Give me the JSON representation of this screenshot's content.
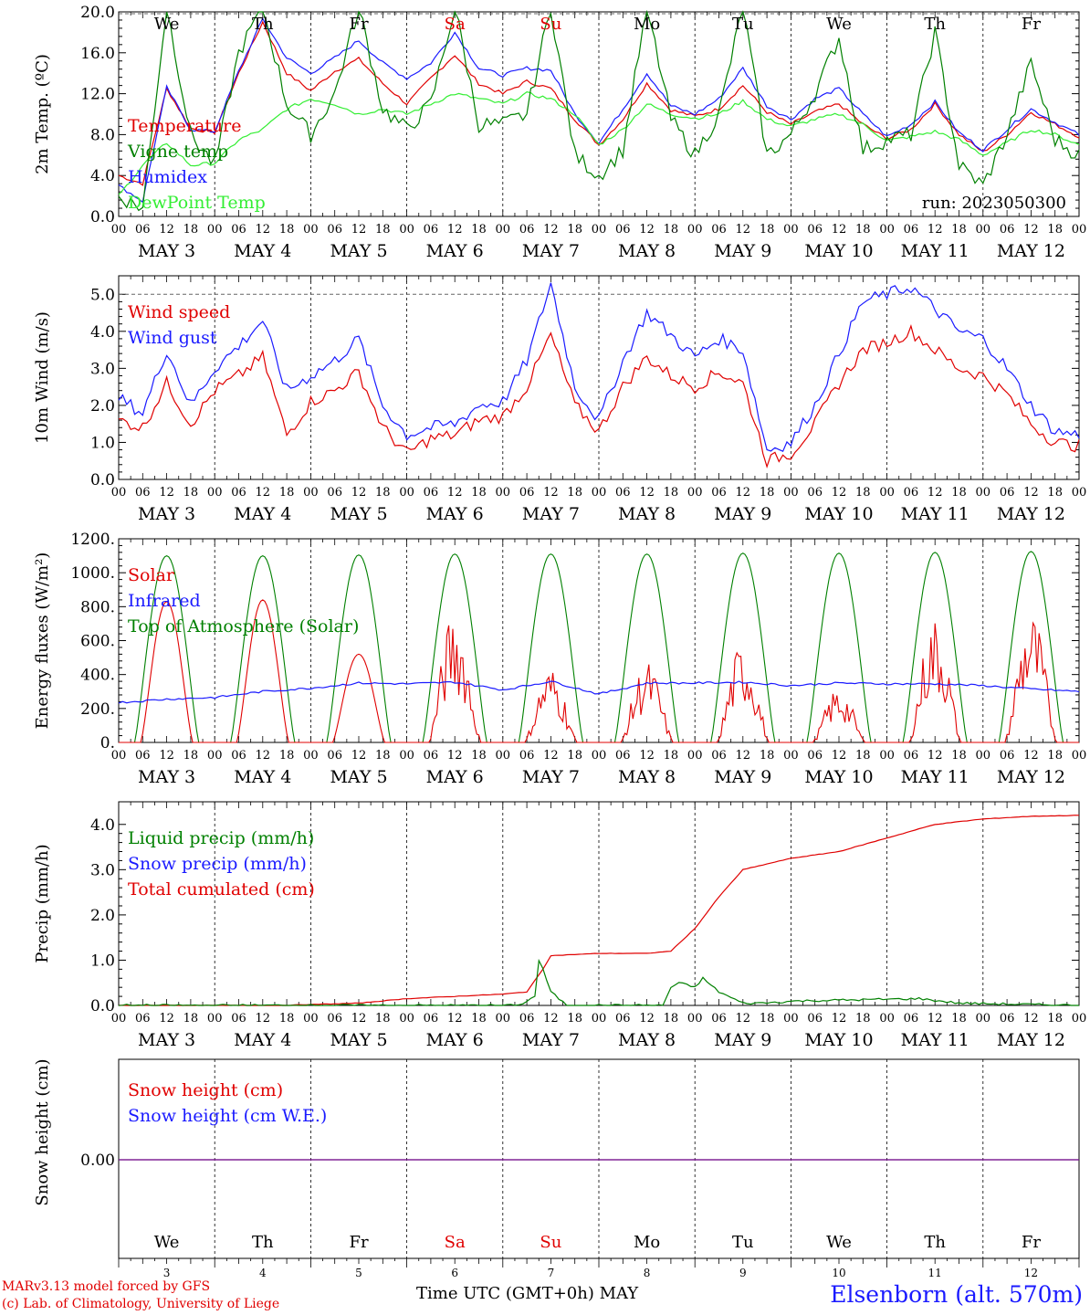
{
  "chart_data": [
    {
      "type": "line",
      "ylabel": "2m Temp. (ºC)",
      "ylim": [
        0,
        20
      ],
      "yticks": [
        "0.0",
        "4.0",
        "8.0",
        "12.0",
        "16.0",
        "20.0"
      ],
      "run_label": "run: 2023050300",
      "legend": [
        "Temperature",
        "Vigne temp",
        "Humidex",
        "DewPoint Temp"
      ],
      "series": [
        {
          "name": "Temperature",
          "color": "#e00000",
          "x": [
            0,
            6,
            12,
            18,
            24,
            30,
            36,
            42,
            48,
            54,
            60,
            66,
            72,
            78,
            84,
            90,
            96,
            102,
            108,
            114,
            120,
            126,
            132,
            138,
            144,
            150,
            156,
            162,
            168,
            174,
            180,
            186,
            192,
            198,
            204,
            210,
            216,
            222,
            228,
            234,
            240
          ],
          "values": [
            4.0,
            3.2,
            12.5,
            8.6,
            8.2,
            14.0,
            19.0,
            14.0,
            12.3,
            14.2,
            15.4,
            13.0,
            11.0,
            13.5,
            15.8,
            13.0,
            12.0,
            13.2,
            12.5,
            9.5,
            7.0,
            9.5,
            13.0,
            10.4,
            9.8,
            10.5,
            12.8,
            10.2,
            9.0,
            10.2,
            11.0,
            9.0,
            7.6,
            8.5,
            11.0,
            8.0,
            6.3,
            8.0,
            10.2,
            9.0,
            7.8
          ]
        },
        {
          "name": "Humidex",
          "color": "#1a1aff",
          "x": [
            0,
            6,
            12,
            18,
            24,
            30,
            36,
            42,
            48,
            54,
            60,
            66,
            72,
            78,
            84,
            90,
            96,
            102,
            108,
            114,
            120,
            126,
            132,
            138,
            144,
            150,
            156,
            162,
            168,
            174,
            180,
            186,
            192,
            198,
            204,
            210,
            216,
            222,
            228,
            234,
            240
          ],
          "values": [
            3.0,
            1.5,
            12.6,
            8.5,
            8.3,
            14.2,
            19.3,
            15.5,
            14.0,
            15.5,
            17.2,
            15.0,
            13.5,
            15.0,
            18.0,
            14.5,
            13.8,
            14.5,
            14.3,
            10.0,
            7.2,
            10.5,
            14.0,
            10.8,
            10.0,
            11.5,
            14.5,
            10.8,
            9.5,
            11.5,
            12.5,
            10.0,
            7.8,
            9.0,
            11.2,
            8.2,
            6.5,
            8.5,
            10.5,
            9.2,
            8.0
          ]
        },
        {
          "name": "DewPoint Temp",
          "color": "#33ee33",
          "x": [
            0,
            6,
            12,
            18,
            24,
            30,
            36,
            42,
            48,
            54,
            60,
            66,
            72,
            78,
            84,
            90,
            96,
            102,
            108,
            114,
            120,
            126,
            132,
            138,
            144,
            150,
            156,
            162,
            168,
            174,
            180,
            186,
            192,
            198,
            204,
            210,
            216,
            222,
            228,
            234,
            240
          ],
          "values": [
            2.0,
            5.0,
            7.2,
            5.0,
            5.2,
            7.5,
            8.5,
            10.5,
            11.5,
            11.0,
            10.0,
            10.5,
            10.0,
            11.0,
            12.0,
            11.5,
            11.0,
            12.0,
            11.5,
            10.0,
            7.0,
            8.5,
            11.0,
            10.0,
            9.6,
            10.0,
            11.3,
            9.5,
            8.8,
            9.5,
            10.0,
            9.0,
            7.4,
            7.8,
            8.3,
            7.5,
            6.0,
            7.2,
            8.5,
            8.0,
            7.0
          ]
        },
        {
          "name": "Vigne temp",
          "color": "#008000",
          "x": [
            0,
            6,
            12,
            18,
            24,
            30,
            36,
            42,
            48,
            54,
            60,
            66,
            72,
            78,
            84,
            90,
            96,
            102,
            108,
            114,
            120,
            126,
            132,
            138,
            144,
            150,
            156,
            162,
            168,
            174,
            180,
            186,
            192,
            198,
            204,
            210,
            216,
            222,
            228,
            234,
            240
          ],
          "values": [
            2.0,
            0.8,
            20.5,
            8.0,
            5.0,
            16.0,
            20.5,
            11.0,
            8.0,
            12.0,
            20.5,
            10.5,
            8.5,
            11.0,
            20.5,
            9.0,
            9.0,
            10.0,
            20.5,
            6.0,
            4.0,
            6.5,
            20.5,
            9.5,
            6.0,
            10.0,
            20.5,
            6.0,
            8.0,
            12.0,
            17.5,
            6.5,
            7.5,
            8.0,
            18.0,
            5.0,
            3.0,
            8.0,
            15.0,
            7.5,
            6.0
          ]
        }
      ]
    },
    {
      "type": "line",
      "ylabel": "10m Wind (m/s)",
      "ylim": [
        0,
        5.5
      ],
      "yticks": [
        "0.0",
        "1.0",
        "2.0",
        "3.0",
        "4.0",
        "5.0"
      ],
      "legend": [
        "Wind speed",
        "Wind gust"
      ],
      "series": [
        {
          "name": "Wind speed",
          "color": "#e00000",
          "x": [
            0,
            6,
            12,
            18,
            24,
            30,
            36,
            42,
            48,
            54,
            60,
            66,
            72,
            78,
            84,
            90,
            96,
            102,
            108,
            114,
            120,
            126,
            132,
            138,
            144,
            150,
            156,
            162,
            168,
            174,
            180,
            186,
            192,
            198,
            204,
            210,
            216,
            222,
            228,
            234,
            240
          ],
          "values": [
            1.6,
            1.4,
            2.6,
            1.5,
            2.4,
            2.8,
            3.3,
            1.2,
            2.1,
            2.4,
            2.9,
            1.4,
            0.7,
            1.1,
            1.2,
            1.6,
            1.7,
            2.5,
            3.9,
            2.0,
            1.3,
            2.5,
            3.3,
            2.8,
            2.5,
            2.9,
            2.6,
            0.5,
            0.7,
            1.5,
            2.6,
            3.5,
            3.7,
            4.0,
            3.5,
            3.0,
            2.8,
            2.3,
            1.5,
            1.0,
            0.9
          ]
        },
        {
          "name": "Wind gust",
          "color": "#1a1aff",
          "x": [
            0,
            6,
            12,
            18,
            24,
            30,
            36,
            42,
            48,
            54,
            60,
            66,
            72,
            78,
            84,
            90,
            96,
            102,
            108,
            114,
            120,
            126,
            132,
            138,
            144,
            150,
            156,
            162,
            168,
            174,
            180,
            186,
            192,
            198,
            204,
            210,
            216,
            222,
            228,
            234,
            240
          ],
          "values": [
            2.2,
            1.8,
            3.5,
            2.0,
            3.0,
            3.6,
            4.3,
            2.4,
            2.8,
            3.2,
            3.8,
            2.0,
            1.2,
            1.4,
            1.5,
            2.0,
            2.1,
            3.2,
            5.3,
            2.5,
            1.6,
            3.2,
            4.5,
            3.9,
            3.3,
            3.8,
            3.5,
            0.8,
            1.0,
            2.0,
            3.4,
            4.8,
            5.0,
            5.2,
            4.6,
            4.0,
            3.8,
            3.0,
            2.0,
            1.3,
            1.2
          ]
        }
      ]
    },
    {
      "type": "line",
      "ylabel": "Energy fluxes (W/m²)",
      "ylim": [
        0,
        1200
      ],
      "yticks": [
        "0.",
        "200.",
        "400.",
        "600.",
        "800.",
        "1000.",
        "1200."
      ],
      "legend": [
        "Solar",
        "Infrared",
        "Top of Atmosphere (Solar)"
      ],
      "toa_peaks": [
        1100,
        1100,
        1105,
        1110,
        1110,
        1110,
        1115,
        1115,
        1120,
        1125
      ],
      "solar_peaks": [
        830,
        840,
        520,
        780,
        450,
        480,
        600,
        330,
        750,
        780
      ],
      "series": [
        {
          "name": "Infrared",
          "color": "#1a1aff",
          "x": [
            0,
            12,
            24,
            36,
            48,
            60,
            72,
            84,
            96,
            108,
            120,
            132,
            144,
            156,
            168,
            180,
            192,
            204,
            216,
            228,
            240
          ],
          "values": [
            235,
            255,
            265,
            300,
            320,
            350,
            345,
            355,
            310,
            360,
            285,
            350,
            350,
            355,
            335,
            350,
            345,
            345,
            335,
            315,
            300
          ]
        }
      ]
    },
    {
      "type": "line",
      "ylabel": "Precip (mm/h)",
      "ylim": [
        0,
        4.5
      ],
      "yticks": [
        "0.0",
        "1.0",
        "2.0",
        "3.0",
        "4.0"
      ],
      "legend": [
        "Liquid precip (mm/h)",
        "Snow precip (mm/h)",
        "Total cumulated (cm)"
      ],
      "series": [
        {
          "name": "Total cumulated (cm)",
          "color": "#e00000",
          "x": [
            0,
            40,
            48,
            60,
            72,
            84,
            96,
            102,
            106,
            108,
            120,
            132,
            138,
            144,
            150,
            156,
            168,
            180,
            192,
            204,
            216,
            228,
            240
          ],
          "values": [
            0,
            0,
            0.02,
            0.05,
            0.15,
            0.2,
            0.25,
            0.3,
            0.8,
            1.1,
            1.15,
            1.15,
            1.2,
            1.7,
            2.4,
            3.0,
            3.25,
            3.4,
            3.7,
            4.0,
            4.12,
            4.18,
            4.2
          ]
        },
        {
          "name": "Liquid precip (mm/h)",
          "color": "#008000",
          "x": [
            0,
            100,
            104,
            105,
            106,
            108,
            112,
            136,
            138,
            140,
            144,
            146,
            150,
            156,
            160,
            170,
            200,
            210,
            240
          ],
          "values": [
            0,
            0,
            0.2,
            1.0,
            0.8,
            0.3,
            0,
            0,
            0.4,
            0.5,
            0.4,
            0.6,
            0.3,
            0.05,
            0.05,
            0.1,
            0.15,
            0.05,
            0
          ]
        }
      ]
    },
    {
      "type": "line",
      "ylabel": "Snow height (cm)",
      "yticks": [
        "0.00"
      ],
      "legend": [
        "Snow height (cm)",
        "Snow height (cm W.E.)"
      ],
      "series": [
        {
          "name": "Snow height (cm)",
          "color": "#e00000",
          "x": [
            0,
            240
          ],
          "values": [
            0,
            0
          ]
        },
        {
          "name": "Snow height (cm W.E.)",
          "color": "#1a1aff",
          "x": [
            0,
            240
          ],
          "values": [
            0,
            0
          ]
        }
      ]
    }
  ],
  "x_axis": {
    "hour_labels": [
      "00",
      "06",
      "12",
      "18"
    ],
    "final_label": "00",
    "days": [
      "MAY  3",
      "MAY  4",
      "MAY  5",
      "MAY  6",
      "MAY  7",
      "MAY  8",
      "MAY  9",
      "MAY 10",
      "MAY 11",
      "MAY 12"
    ],
    "weekdays": [
      "We",
      "Th",
      "Fr",
      "Sa",
      "Su",
      "Mo",
      "Tu",
      "We",
      "Th",
      "Fr"
    ],
    "weekend_color": "#e00000",
    "day_numbers": [
      "3",
      "4",
      "5",
      "6",
      "7",
      "8",
      "9",
      "10",
      "11",
      "12"
    ],
    "title": "Time UTC (GMT+0h)",
    "month": "MAY"
  },
  "footer": {
    "credit_line1": "MARv3.13 model forced by GFS",
    "credit_line2": "(c) Lab. of Climatology, University of Liege",
    "station": "Elsenborn (alt. 570m)"
  }
}
